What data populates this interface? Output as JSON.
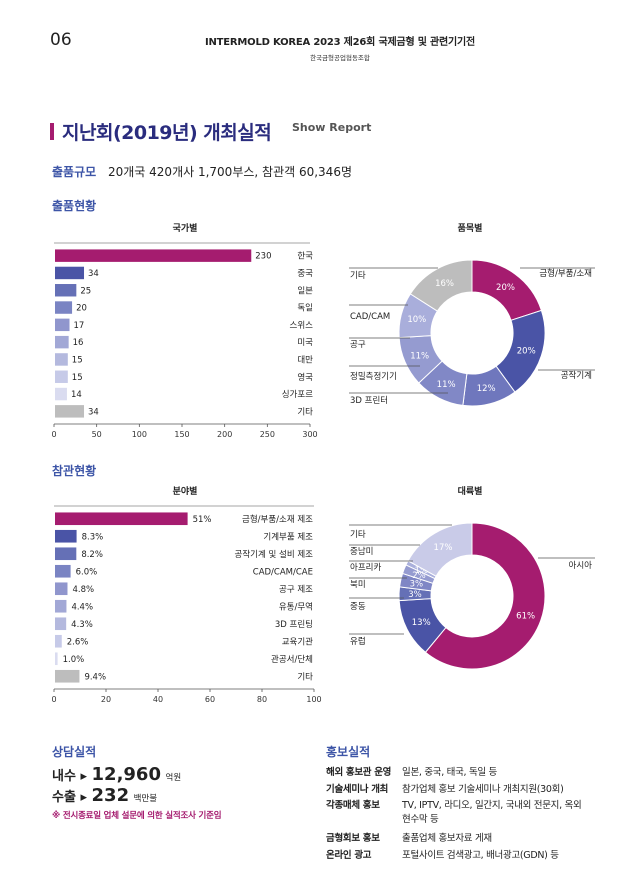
{
  "header": {
    "page_number": "06",
    "title": "INTERMOLD KOREA 2023 제26회 국제금형 및 관련기기전",
    "organizer": "한국금형공업협동조합"
  },
  "section": {
    "title": "지난회(2019년) 개최실적",
    "title_en": "Show Report"
  },
  "scale": {
    "label": "출품규모",
    "text": "20개국 420개사 1,700부스, 참관객 60,346명"
  },
  "exhibit": {
    "heading": "출품현황",
    "by_country_title": "국가별",
    "by_item_title": "품목별"
  },
  "visit": {
    "heading": "참관현황",
    "by_field_title": "분야별",
    "by_continent_title": "대륙별"
  },
  "colors": {
    "magenta": "#a51c6f",
    "indigo": "#4a54a6",
    "gray": "#bdbdbd",
    "title_blue": "#2a2c7e"
  },
  "chart_data": [
    {
      "type": "bar",
      "orientation": "horizontal",
      "title": "국가별",
      "categories": [
        "한국",
        "중국",
        "일본",
        "독일",
        "스위스",
        "미국",
        "대만",
        "영국",
        "싱가포르",
        "기타"
      ],
      "values": [
        230,
        34,
        25,
        20,
        17,
        16,
        15,
        15,
        14,
        34
      ],
      "value_labels": [
        "230",
        "34",
        "25",
        "20",
        "17",
        "16",
        "15",
        "15",
        "14",
        "34"
      ],
      "colors": [
        "#a51c6f",
        "#4a54a6",
        "#6570b6",
        "#7a84c3",
        "#9096cd",
        "#a2a8d6",
        "#b4b9de",
        "#c6cae8",
        "#dadcf0",
        "#bdbdbd"
      ],
      "xlim": [
        0,
        300
      ],
      "xticks": [
        "0",
        "50",
        "100",
        "150",
        "200",
        "250",
        "300"
      ]
    },
    {
      "type": "pie",
      "donut": true,
      "title": "품목별",
      "labels": [
        "금형/부품/소재",
        "공작기계",
        "3D 프린터",
        "정밀측정기기",
        "공구",
        "CAD/CAM",
        "기타"
      ],
      "values": [
        20,
        20,
        12,
        11,
        11,
        10,
        16
      ],
      "value_labels": [
        "20%",
        "20%",
        "12%",
        "11%",
        "11%",
        "10%",
        "16%"
      ],
      "colors": [
        "#a51c6f",
        "#4a54a6",
        "#6f77bd",
        "#8188c6",
        "#959bd0",
        "#a9aedb",
        "#bdbdbd"
      ]
    },
    {
      "type": "bar",
      "orientation": "horizontal",
      "title": "분야별",
      "categories": [
        "금형/부품/소재 제조",
        "기계부품 제조",
        "공작기계 및 설비 제조",
        "CAD/CAM/CAE",
        "공구 제조",
        "유통/무역",
        "3D 프린팅",
        "교육기관",
        "관공서/단체",
        "기타"
      ],
      "values": [
        51,
        8.3,
        8.2,
        6.0,
        4.8,
        4.4,
        4.3,
        2.6,
        1.0,
        9.4
      ],
      "value_labels": [
        "51%",
        "8.3%",
        "8.2%",
        "6.0%",
        "4.8%",
        "4.4%",
        "4.3%",
        "2.6%",
        "1.0%",
        "9.4%"
      ],
      "colors": [
        "#a51c6f",
        "#4a54a6",
        "#6570b6",
        "#7a84c3",
        "#9096cd",
        "#a2a8d6",
        "#b4b9de",
        "#c6cae8",
        "#dadcf0",
        "#bdbdbd"
      ],
      "xlim": [
        0,
        100
      ],
      "xticks": [
        "0",
        "20",
        "40",
        "60",
        "80",
        "100"
      ]
    },
    {
      "type": "pie",
      "donut": true,
      "title": "대륙별",
      "labels": [
        "아시아",
        "유럽",
        "중동",
        "북미",
        "아프리카",
        "중남미",
        "기타"
      ],
      "values": [
        61,
        13,
        3,
        3,
        2,
        1,
        17
      ],
      "value_labels": [
        "61%",
        "13%",
        "3%",
        "3%",
        "2%",
        "1%",
        "17%"
      ],
      "colors": [
        "#a51c6f",
        "#4a54a6",
        "#6570b6",
        "#7f86c5",
        "#959bd0",
        "#aab0dc",
        "#c9cbe8"
      ]
    }
  ],
  "consult": {
    "title": "상담실적",
    "domestic_label": "내수 ▸",
    "domestic_value": "12,960",
    "domestic_unit": "억원",
    "export_label": "수출 ▸",
    "export_value": "232",
    "export_unit": "백만불",
    "note": "※ 전시종료일 업체 설문에 의한 실적조사 기준임"
  },
  "promo": {
    "title": "홍보실적",
    "rows": [
      {
        "label": "해외 홍보관 운영",
        "value": "일본, 중국, 태국, 독일 등"
      },
      {
        "label": "기술세미나 개최",
        "value": "참가업체 홍보 기술세미나 개최지원(30회)"
      },
      {
        "label": "각종매체 홍보",
        "value": "TV, IPTV, 라디오, 일간지, 국내외 전문지, 옥외 현수막 등"
      },
      {
        "label": "금형회보 홍보",
        "value": "출품업체 홍보자료 게재"
      },
      {
        "label": "온라인 광고",
        "value": "포털사이트 검색광고, 배너광고(GDN) 등"
      }
    ]
  }
}
